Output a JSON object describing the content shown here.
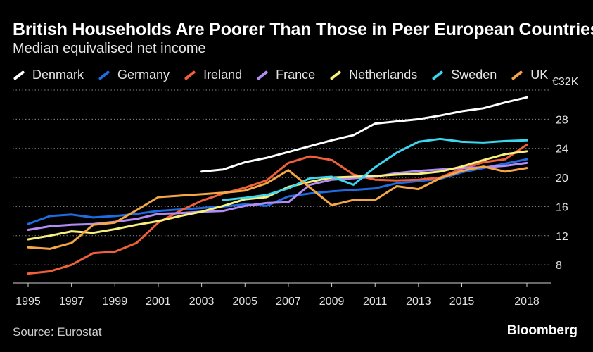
{
  "header": {
    "title": "British Households Are Poorer Than Those in Peer European Countries",
    "subtitle": "Median equivalised net income"
  },
  "footer": {
    "source": "Source: Eurostat",
    "brand": "Bloomberg"
  },
  "chart_data": {
    "type": "line",
    "title": "British Households Are Poorer Than Those in Peer European Countries",
    "subtitle": "Median equivalised net income",
    "xlabel": "",
    "ylabel": "",
    "unit_label": "€32K",
    "xlim": [
      1995,
      2018
    ],
    "ylim": [
      5.5,
      32
    ],
    "x_ticks": [
      1995,
      1997,
      1999,
      2001,
      2003,
      2005,
      2007,
      2009,
      2011,
      2013,
      2015,
      2018
    ],
    "y_ticks": [
      8,
      12,
      16,
      20,
      24,
      28
    ],
    "grid": true,
    "legend_position": "top",
    "series": [
      {
        "name": "Denmark",
        "color": "#ffffff",
        "points": [
          [
            2003,
            20.8
          ],
          [
            2004,
            21.1
          ],
          [
            2005,
            22.1
          ],
          [
            2006,
            22.7
          ],
          [
            2007,
            23.5
          ],
          [
            2008,
            24.3
          ],
          [
            2009,
            25.1
          ],
          [
            2010,
            25.8
          ],
          [
            2011,
            27.4
          ],
          [
            2012,
            27.7
          ],
          [
            2013,
            28.0
          ],
          [
            2014,
            28.5
          ],
          [
            2015,
            29.1
          ],
          [
            2016,
            29.5
          ],
          [
            2017,
            30.3
          ],
          [
            2018,
            31.0
          ]
        ]
      },
      {
        "name": "Germany",
        "color": "#1f6be0",
        "points": [
          [
            1995,
            13.6
          ],
          [
            1996,
            14.7
          ],
          [
            1997,
            14.9
          ],
          [
            1998,
            14.5
          ],
          [
            1999,
            14.7
          ],
          [
            2000,
            15.0
          ],
          [
            2001,
            15.4
          ],
          [
            2002,
            15.6
          ],
          [
            2003,
            15.8
          ],
          [
            2004,
            16.0
          ],
          [
            2005,
            16.3
          ],
          [
            2006,
            16.1
          ],
          [
            2007,
            17.4
          ],
          [
            2008,
            17.8
          ],
          [
            2009,
            18.1
          ],
          [
            2010,
            18.3
          ],
          [
            2011,
            18.5
          ],
          [
            2012,
            19.2
          ],
          [
            2013,
            19.5
          ],
          [
            2014,
            19.8
          ],
          [
            2015,
            20.7
          ],
          [
            2016,
            21.3
          ],
          [
            2017,
            21.9
          ],
          [
            2018,
            22.5
          ]
        ]
      },
      {
        "name": "Ireland",
        "color": "#f0603a",
        "points": [
          [
            1995,
            6.8
          ],
          [
            1996,
            7.1
          ],
          [
            1997,
            8.0
          ],
          [
            1998,
            9.6
          ],
          [
            1999,
            9.8
          ],
          [
            2000,
            11.0
          ],
          [
            2001,
            13.8
          ],
          [
            2002,
            15.4
          ],
          [
            2003,
            16.8
          ],
          [
            2004,
            17.8
          ],
          [
            2005,
            18.6
          ],
          [
            2006,
            19.6
          ],
          [
            2007,
            22.0
          ],
          [
            2008,
            22.9
          ],
          [
            2009,
            22.4
          ],
          [
            2010,
            20.4
          ],
          [
            2011,
            19.7
          ],
          [
            2012,
            19.6
          ],
          [
            2013,
            19.7
          ],
          [
            2014,
            20.0
          ],
          [
            2015,
            21.2
          ],
          [
            2016,
            22.1
          ],
          [
            2017,
            22.5
          ],
          [
            2018,
            24.5
          ]
        ]
      },
      {
        "name": "France",
        "color": "#b38cf5",
        "points": [
          [
            1995,
            12.8
          ],
          [
            1996,
            13.3
          ],
          [
            1997,
            13.5
          ],
          [
            1998,
            13.6
          ],
          [
            1999,
            13.9
          ],
          [
            2000,
            14.3
          ],
          [
            2001,
            15.0
          ],
          [
            2002,
            15.1
          ],
          [
            2003,
            15.3
          ],
          [
            2004,
            15.4
          ],
          [
            2005,
            16.1
          ],
          [
            2006,
            16.5
          ],
          [
            2007,
            16.6
          ],
          [
            2008,
            19.0
          ],
          [
            2009,
            19.7
          ],
          [
            2010,
            19.9
          ],
          [
            2011,
            20.1
          ],
          [
            2012,
            20.6
          ],
          [
            2013,
            20.9
          ],
          [
            2014,
            21.1
          ],
          [
            2015,
            21.3
          ],
          [
            2016,
            21.4
          ],
          [
            2017,
            21.6
          ],
          [
            2018,
            22.0
          ]
        ]
      },
      {
        "name": "Netherlands",
        "color": "#f7f07a",
        "points": [
          [
            1995,
            11.5
          ],
          [
            1996,
            12.0
          ],
          [
            1997,
            12.6
          ],
          [
            1998,
            12.4
          ],
          [
            1999,
            12.9
          ],
          [
            2000,
            13.5
          ],
          [
            2001,
            14.0
          ],
          [
            2002,
            14.7
          ],
          [
            2003,
            15.3
          ],
          [
            2004,
            16.1
          ],
          [
            2005,
            17.0
          ],
          [
            2006,
            17.3
          ],
          [
            2007,
            18.7
          ],
          [
            2008,
            19.4
          ],
          [
            2009,
            20.0
          ],
          [
            2010,
            20.1
          ],
          [
            2011,
            20.2
          ],
          [
            2012,
            20.4
          ],
          [
            2013,
            20.5
          ],
          [
            2014,
            20.8
          ],
          [
            2015,
            21.5
          ],
          [
            2016,
            22.4
          ],
          [
            2017,
            23.2
          ],
          [
            2018,
            23.6
          ]
        ]
      },
      {
        "name": "Sweden",
        "color": "#3cd6ef",
        "points": [
          [
            2004,
            16.9
          ],
          [
            2005,
            17.2
          ],
          [
            2006,
            17.6
          ],
          [
            2007,
            18.5
          ],
          [
            2008,
            19.9
          ],
          [
            2009,
            20.1
          ],
          [
            2010,
            19.0
          ],
          [
            2011,
            21.4
          ],
          [
            2012,
            23.4
          ],
          [
            2013,
            24.9
          ],
          [
            2014,
            25.3
          ],
          [
            2015,
            24.9
          ],
          [
            2016,
            24.8
          ],
          [
            2017,
            25.0
          ],
          [
            2018,
            25.1
          ]
        ]
      },
      {
        "name": "UK",
        "color": "#f5a646",
        "points": [
          [
            1995,
            10.4
          ],
          [
            1996,
            10.2
          ],
          [
            1997,
            11.0
          ],
          [
            1998,
            13.5
          ],
          [
            1999,
            13.8
          ],
          [
            2000,
            15.5
          ],
          [
            2001,
            17.3
          ],
          [
            2002,
            17.5
          ],
          [
            2003,
            17.7
          ],
          [
            2004,
            17.9
          ],
          [
            2005,
            18.2
          ],
          [
            2006,
            19.2
          ],
          [
            2007,
            21.0
          ],
          [
            2008,
            18.6
          ],
          [
            2009,
            16.2
          ],
          [
            2010,
            16.9
          ],
          [
            2011,
            16.9
          ],
          [
            2012,
            18.8
          ],
          [
            2013,
            18.4
          ],
          [
            2014,
            19.9
          ],
          [
            2015,
            20.9
          ],
          [
            2016,
            21.5
          ],
          [
            2017,
            20.8
          ],
          [
            2018,
            21.3
          ]
        ]
      }
    ]
  }
}
